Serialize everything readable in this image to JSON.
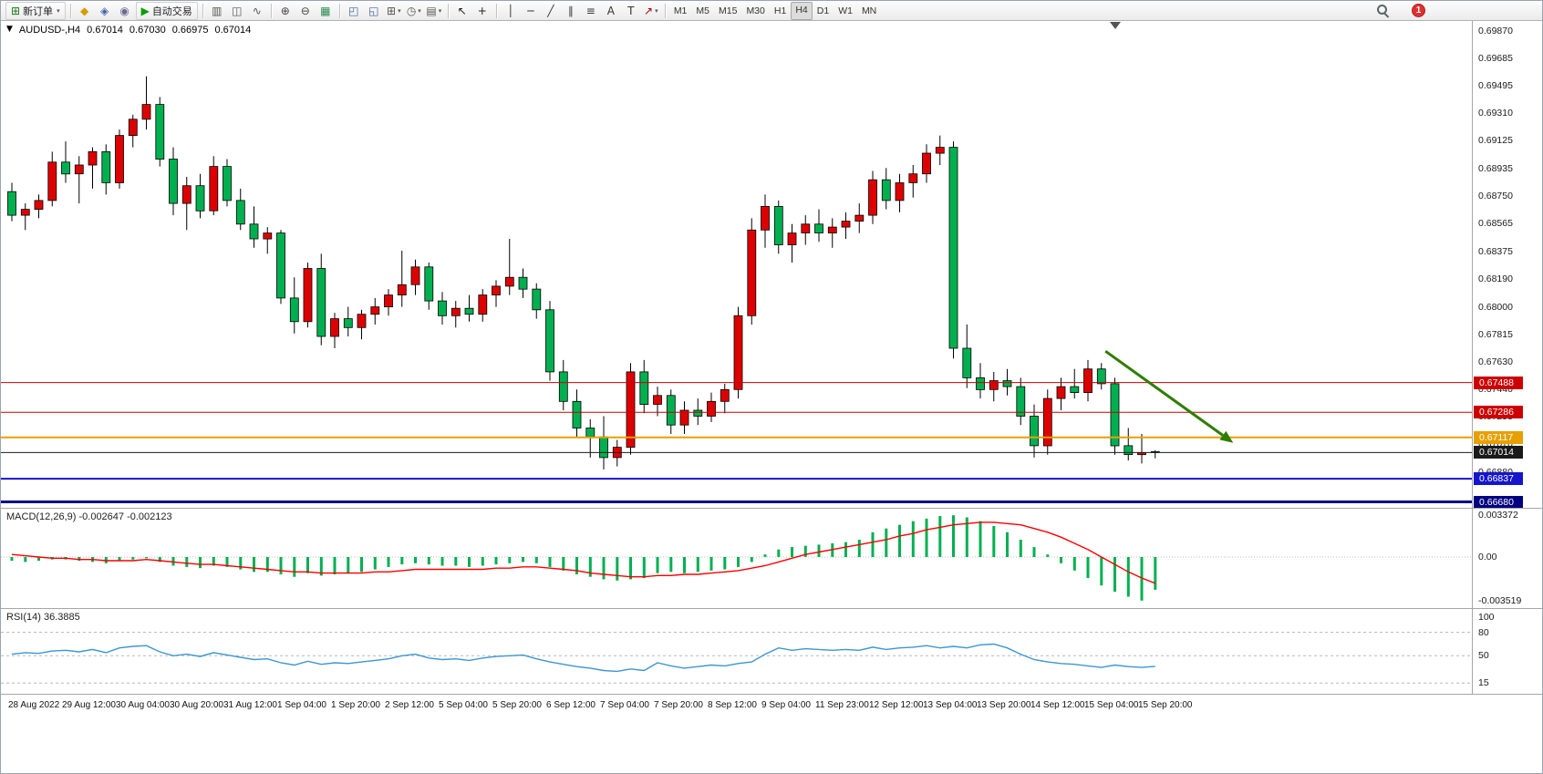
{
  "toolbar": {
    "items": [
      {
        "t": "btn",
        "name": "new-order",
        "icon": "candlestick-plus",
        "label": "新订单",
        "dd": true
      },
      {
        "t": "sep"
      },
      {
        "t": "ico",
        "name": "market-watch"
      },
      {
        "t": "ico",
        "name": "navigator"
      },
      {
        "t": "ico",
        "name": "terminal"
      },
      {
        "t": "btn",
        "name": "auto-trading",
        "icon": "play",
        "label": "自动交易"
      },
      {
        "t": "sep"
      },
      {
        "t": "ico",
        "name": "bar-chart-mode"
      },
      {
        "t": "ico",
        "name": "candle-chart-mode"
      },
      {
        "t": "ico",
        "name": "line-chart-mode"
      },
      {
        "t": "sep"
      },
      {
        "t": "ico",
        "name": "zoom-in"
      },
      {
        "t": "ico",
        "name": "zoom-out"
      },
      {
        "t": "ico",
        "name": "tile-grid"
      },
      {
        "t": "sep"
      },
      {
        "t": "ico",
        "name": "tile-windows"
      },
      {
        "t": "ico",
        "name": "cascade-windows"
      },
      {
        "t": "ico",
        "name": "new-chart",
        "dd": true
      },
      {
        "t": "ico",
        "name": "periods",
        "dd": true
      },
      {
        "t": "ico",
        "name": "templates",
        "dd": true
      },
      {
        "t": "sep"
      },
      {
        "t": "ico",
        "name": "cursor"
      },
      {
        "t": "ico",
        "name": "crosshair"
      },
      {
        "t": "sep"
      },
      {
        "t": "ico",
        "name": "vertical-line"
      },
      {
        "t": "ico",
        "name": "horizontal-line"
      },
      {
        "t": "ico",
        "name": "trendline"
      },
      {
        "t": "ico",
        "name": "equidistant-channel"
      },
      {
        "t": "ico",
        "name": "fibonacci"
      },
      {
        "t": "ico",
        "name": "text"
      },
      {
        "t": "ico",
        "name": "text-label"
      },
      {
        "t": "ico",
        "name": "arrows",
        "dd": true
      },
      {
        "t": "sep"
      },
      {
        "t": "tfs"
      }
    ],
    "timeframes": [
      "M1",
      "M5",
      "M15",
      "M30",
      "H1",
      "H4",
      "D1",
      "W1",
      "MN"
    ],
    "active_timeframe": "H4",
    "notification_badge": "1"
  },
  "chart": {
    "symbol_period": "AUDUSD-,H4",
    "quote": {
      "open": "0.67014",
      "high": "0.67030",
      "low": "0.66975",
      "close": "0.67014"
    },
    "macd_label": {
      "name": "MACD(12,26,9)",
      "main_value": "-0.002647",
      "signal_value": "-0.002123"
    },
    "rsi_label": {
      "name": "RSI(14)",
      "value": "36.3885"
    }
  },
  "chart_data": {
    "main": {
      "type": "candlestick",
      "symbol": "AUDUSD-",
      "timeframe": "H4",
      "background": "#FFFFFF",
      "grid": "off",
      "up_color": "#DE0000",
      "down_color": "#00B050",
      "outline_color": "#000000",
      "price_range": [
        0.6664,
        0.69935
      ],
      "axis_labels": [
        "0.69870",
        "0.69685",
        "0.69495",
        "0.69310",
        "0.69125",
        "0.68935",
        "0.68750",
        "0.68565",
        "0.68375",
        "0.68190",
        "0.68000",
        "0.67815",
        "0.67630",
        "0.67440",
        "0.67255",
        "0.67070",
        "0.66880",
        "0.66695"
      ],
      "candles": [
        [
          0.6878,
          0.6884,
          0.6858,
          0.6862
        ],
        [
          0.6862,
          0.687,
          0.6852,
          0.6866
        ],
        [
          0.6866,
          0.6876,
          0.686,
          0.6872
        ],
        [
          0.6872,
          0.6905,
          0.6868,
          0.6898
        ],
        [
          0.6898,
          0.6912,
          0.6884,
          0.689
        ],
        [
          0.689,
          0.6902,
          0.687,
          0.6896
        ],
        [
          0.6896,
          0.6908,
          0.688,
          0.6905
        ],
        [
          0.6905,
          0.691,
          0.6876,
          0.6884
        ],
        [
          0.6884,
          0.692,
          0.688,
          0.6916
        ],
        [
          0.6916,
          0.693,
          0.6908,
          0.6927
        ],
        [
          0.6927,
          0.6956,
          0.692,
          0.6937
        ],
        [
          0.6937,
          0.6942,
          0.6895,
          0.69
        ],
        [
          0.69,
          0.6908,
          0.6862,
          0.687
        ],
        [
          0.687,
          0.6888,
          0.6852,
          0.6882
        ],
        [
          0.6882,
          0.689,
          0.686,
          0.6865
        ],
        [
          0.6865,
          0.6902,
          0.6862,
          0.6895
        ],
        [
          0.6895,
          0.69,
          0.6868,
          0.6872
        ],
        [
          0.6872,
          0.688,
          0.6852,
          0.6856
        ],
        [
          0.6856,
          0.6868,
          0.684,
          0.6846
        ],
        [
          0.6846,
          0.6854,
          0.6836,
          0.685
        ],
        [
          0.685,
          0.6852,
          0.6802,
          0.6806
        ],
        [
          0.6806,
          0.682,
          0.6782,
          0.679
        ],
        [
          0.679,
          0.683,
          0.6786,
          0.6826
        ],
        [
          0.6826,
          0.6836,
          0.6774,
          0.678
        ],
        [
          0.678,
          0.6796,
          0.6772,
          0.6792
        ],
        [
          0.6792,
          0.68,
          0.678,
          0.6786
        ],
        [
          0.6786,
          0.6798,
          0.6778,
          0.6795
        ],
        [
          0.6795,
          0.6806,
          0.6788,
          0.68
        ],
        [
          0.68,
          0.6812,
          0.6794,
          0.6808
        ],
        [
          0.6808,
          0.6838,
          0.68,
          0.6815
        ],
        [
          0.6815,
          0.6832,
          0.6808,
          0.6827
        ],
        [
          0.6827,
          0.683,
          0.6798,
          0.6804
        ],
        [
          0.6804,
          0.681,
          0.6788,
          0.6794
        ],
        [
          0.6794,
          0.6804,
          0.6786,
          0.6799
        ],
        [
          0.6799,
          0.6808,
          0.679,
          0.6795
        ],
        [
          0.6795,
          0.6812,
          0.679,
          0.6808
        ],
        [
          0.6808,
          0.6818,
          0.68,
          0.6814
        ],
        [
          0.6814,
          0.6846,
          0.6808,
          0.682
        ],
        [
          0.682,
          0.6826,
          0.6806,
          0.6812
        ],
        [
          0.6812,
          0.6816,
          0.6792,
          0.6798
        ],
        [
          0.6798,
          0.6804,
          0.675,
          0.6756
        ],
        [
          0.6756,
          0.6764,
          0.673,
          0.6736
        ],
        [
          0.6736,
          0.6744,
          0.6712,
          0.6718
        ],
        [
          0.6718,
          0.6724,
          0.6698,
          0.6712
        ],
        [
          0.6712,
          0.6726,
          0.669,
          0.6698
        ],
        [
          0.6698,
          0.671,
          0.6692,
          0.6705
        ],
        [
          0.6705,
          0.6762,
          0.67,
          0.6756
        ],
        [
          0.6756,
          0.6764,
          0.6728,
          0.6734
        ],
        [
          0.6734,
          0.6746,
          0.6726,
          0.674
        ],
        [
          0.674,
          0.6744,
          0.6714,
          0.672
        ],
        [
          0.672,
          0.6736,
          0.6714,
          0.673
        ],
        [
          0.673,
          0.6738,
          0.672,
          0.6726
        ],
        [
          0.6726,
          0.6742,
          0.6722,
          0.6736
        ],
        [
          0.6736,
          0.6748,
          0.6728,
          0.6744
        ],
        [
          0.6744,
          0.68,
          0.6738,
          0.6794
        ],
        [
          0.6794,
          0.686,
          0.6788,
          0.6852
        ],
        [
          0.6852,
          0.6876,
          0.684,
          0.6868
        ],
        [
          0.6868,
          0.6872,
          0.6836,
          0.6842
        ],
        [
          0.6842,
          0.6856,
          0.683,
          0.685
        ],
        [
          0.685,
          0.6862,
          0.6842,
          0.6856
        ],
        [
          0.6856,
          0.6866,
          0.6844,
          0.685
        ],
        [
          0.685,
          0.686,
          0.684,
          0.6854
        ],
        [
          0.6854,
          0.6864,
          0.6846,
          0.6858
        ],
        [
          0.6858,
          0.687,
          0.685,
          0.6862
        ],
        [
          0.6862,
          0.6892,
          0.6856,
          0.6886
        ],
        [
          0.6886,
          0.6894,
          0.6866,
          0.6872
        ],
        [
          0.6872,
          0.689,
          0.6864,
          0.6884
        ],
        [
          0.6884,
          0.6896,
          0.6874,
          0.689
        ],
        [
          0.689,
          0.691,
          0.6884,
          0.6904
        ],
        [
          0.6904,
          0.6916,
          0.6896,
          0.6908
        ],
        [
          0.6908,
          0.6912,
          0.6765,
          0.6772
        ],
        [
          0.6772,
          0.6788,
          0.6745,
          0.6752
        ],
        [
          0.6752,
          0.6762,
          0.6738,
          0.6744
        ],
        [
          0.6744,
          0.6756,
          0.6736,
          0.675
        ],
        [
          0.675,
          0.6758,
          0.674,
          0.6746
        ],
        [
          0.6746,
          0.6752,
          0.672,
          0.6726
        ],
        [
          0.6726,
          0.6734,
          0.6698,
          0.6706
        ],
        [
          0.6706,
          0.6744,
          0.67,
          0.6738
        ],
        [
          0.6738,
          0.6752,
          0.673,
          0.6746
        ],
        [
          0.6746,
          0.6758,
          0.6738,
          0.6742
        ],
        [
          0.6742,
          0.6764,
          0.6736,
          0.6758
        ],
        [
          0.6758,
          0.6762,
          0.6744,
          0.6748
        ],
        [
          0.6748,
          0.6752,
          0.67,
          0.6706
        ],
        [
          0.6706,
          0.6718,
          0.6696,
          0.67
        ],
        [
          0.67,
          0.6714,
          0.6694,
          0.67014
        ],
        [
          0.6702,
          0.6703,
          0.66975,
          0.67014
        ]
      ],
      "hlines": [
        {
          "price": 0.67488,
          "color": "#CC0000",
          "width": 1,
          "label": "0.67488"
        },
        {
          "price": 0.67286,
          "color": "#CC0000",
          "width": 1,
          "label": "0.67286"
        },
        {
          "price": 0.67117,
          "color": "#E8A000",
          "width": 2,
          "label": "0.67117"
        },
        {
          "price": 0.67014,
          "color": "#1A1A1A",
          "width": 1,
          "label": "0.67014",
          "current": true
        },
        {
          "price": 0.66837,
          "color": "#1515CC",
          "width": 2,
          "label": "0.66837"
        },
        {
          "price": 0.6668,
          "color": "#000080",
          "width": 3,
          "label": "0.66680"
        }
      ],
      "arrow": {
        "from": {
          "index": 81.3,
          "price": 0.677
        },
        "to": {
          "index": 90.8,
          "price": 0.6708
        },
        "color": "#2E7D00"
      },
      "shift_marker_px": 1222
    },
    "macd": {
      "type": "bar",
      "name": "MACD(12,26,9)",
      "hist_color": "#00B050",
      "signal_color": "#FF0000",
      "ylim": [
        -0.0042,
        0.0039
      ],
      "axis": [
        {
          "label": "0.003372",
          "value": 0.003372
        },
        {
          "label": "0.00",
          "value": 0
        },
        {
          "label": "-0.003519",
          "value": -0.003519
        }
      ],
      "hist": [
        -0.0003,
        -0.0004,
        -0.0003,
        -0.0002,
        -0.0002,
        -0.0003,
        -0.0004,
        -0.0005,
        -0.0003,
        -0.0002,
        -0.0001,
        -0.0004,
        -0.0007,
        -0.0008,
        -0.0009,
        -0.0007,
        -0.0008,
        -0.001,
        -0.0012,
        -0.0012,
        -0.0014,
        -0.0016,
        -0.0013,
        -0.0015,
        -0.0014,
        -0.0013,
        -0.0012,
        -0.001,
        -0.0008,
        -0.0006,
        -0.0005,
        -0.0006,
        -0.0007,
        -0.0007,
        -0.0008,
        -0.0007,
        -0.0006,
        -0.0005,
        -0.0004,
        -0.0005,
        -0.0008,
        -0.0011,
        -0.0014,
        -0.0016,
        -0.0018,
        -0.0019,
        -0.0018,
        -0.0017,
        -0.0013,
        -0.0012,
        -0.0013,
        -0.0012,
        -0.0011,
        -0.001,
        -0.0008,
        -0.0004,
        0.0002,
        0.0006,
        0.0008,
        0.0009,
        0.001,
        0.0011,
        0.0012,
        0.0014,
        0.002,
        0.0023,
        0.0026,
        0.0029,
        0.0031,
        0.0033,
        0.003372,
        0.0032,
        0.0029,
        0.0025,
        0.002,
        0.0014,
        0.0008,
        0.0002,
        -0.0005,
        -0.0011,
        -0.0017,
        -0.0023,
        -0.0028,
        -0.0032,
        -0.003519,
        -0.002647
      ],
      "signal": [
        0.0002,
        0.0001,
        0.0,
        -0.0001,
        -0.0001,
        -0.0002,
        -0.0002,
        -0.0003,
        -0.0003,
        -0.0003,
        -0.0002,
        -0.0003,
        -0.0004,
        -0.0005,
        -0.0006,
        -0.0006,
        -0.0007,
        -0.0008,
        -0.0009,
        -0.001,
        -0.0011,
        -0.0012,
        -0.0012,
        -0.0013,
        -0.0013,
        -0.0013,
        -0.0013,
        -0.0012,
        -0.0012,
        -0.0011,
        -0.001,
        -0.001,
        -0.001,
        -0.001,
        -0.001,
        -0.001,
        -0.0009,
        -0.0009,
        -0.0008,
        -0.0008,
        -0.0009,
        -0.001,
        -0.0011,
        -0.0013,
        -0.0014,
        -0.0015,
        -0.0016,
        -0.0016,
        -0.0015,
        -0.0015,
        -0.0014,
        -0.0014,
        -0.0013,
        -0.0012,
        -0.0011,
        -0.0009,
        -0.0007,
        -0.0004,
        -0.0001,
        0.0002,
        0.0004,
        0.0006,
        0.0008,
        0.001,
        0.0012,
        0.0014,
        0.0017,
        0.0019,
        0.0022,
        0.0024,
        0.0026,
        0.0027,
        0.0028,
        0.0028,
        0.0027,
        0.0026,
        0.0023,
        0.002,
        0.0016,
        0.0011,
        0.0006,
        0.0,
        -0.0006,
        -0.0012,
        -0.0017,
        -0.002123
      ]
    },
    "rsi": {
      "type": "line",
      "name": "RSI(14)",
      "line_color": "#3C96D2",
      "ylim": [
        0,
        110
      ],
      "levels": [
        80,
        50,
        15
      ],
      "axis_labels": [
        {
          "label": "100",
          "value": 100
        },
        {
          "label": "80",
          "value": 80
        },
        {
          "label": "50",
          "value": 50
        },
        {
          "label": "15",
          "value": 15
        }
      ],
      "values": [
        52,
        54,
        53,
        56,
        57,
        55,
        58,
        54,
        60,
        62,
        63,
        55,
        50,
        52,
        49,
        54,
        51,
        48,
        45,
        46,
        41,
        38,
        43,
        39,
        41,
        40,
        42,
        44,
        46,
        50,
        52,
        47,
        45,
        46,
        44,
        47,
        49,
        50,
        51,
        46,
        42,
        39,
        36,
        34,
        31,
        30,
        33,
        31,
        41,
        37,
        34,
        36,
        38,
        37,
        40,
        42,
        52,
        60,
        57,
        59,
        58,
        57,
        58,
        57,
        61,
        58,
        60,
        61,
        63,
        60,
        62,
        60,
        64,
        65,
        60,
        52,
        45,
        42,
        40,
        39,
        37,
        35,
        38,
        36,
        35,
        36.39
      ]
    },
    "time_axis": {
      "candles_per_label": 4,
      "labels": [
        "28 Aug 2022",
        "29 Aug 12:00",
        "30 Aug 04:00",
        "30 Aug 20:00",
        "31 Aug 12:00",
        "1 Sep 04:00",
        "1 Sep 20:00",
        "2 Sep 12:00",
        "5 Sep 04:00",
        "5 Sep 20:00",
        "6 Sep 12:00",
        "7 Sep 04:00",
        "7 Sep 20:00",
        "8 Sep 12:00",
        "9 Sep 04:00",
        "11 Sep 23:00",
        "12 Sep 12:00",
        "13 Sep 04:00",
        "13 Sep 20:00",
        "14 Sep 12:00",
        "15 Sep 04:00",
        "15 Sep 20:00"
      ]
    }
  },
  "colors": {
    "candle_up": "#DE0000",
    "candle_down": "#00B050",
    "macd_hist": "#00B050",
    "macd_signal": "#FF0000",
    "rsi_line": "#3C96D2",
    "trend_arrow": "#2E7D00",
    "notification_badge": "#E03030"
  }
}
